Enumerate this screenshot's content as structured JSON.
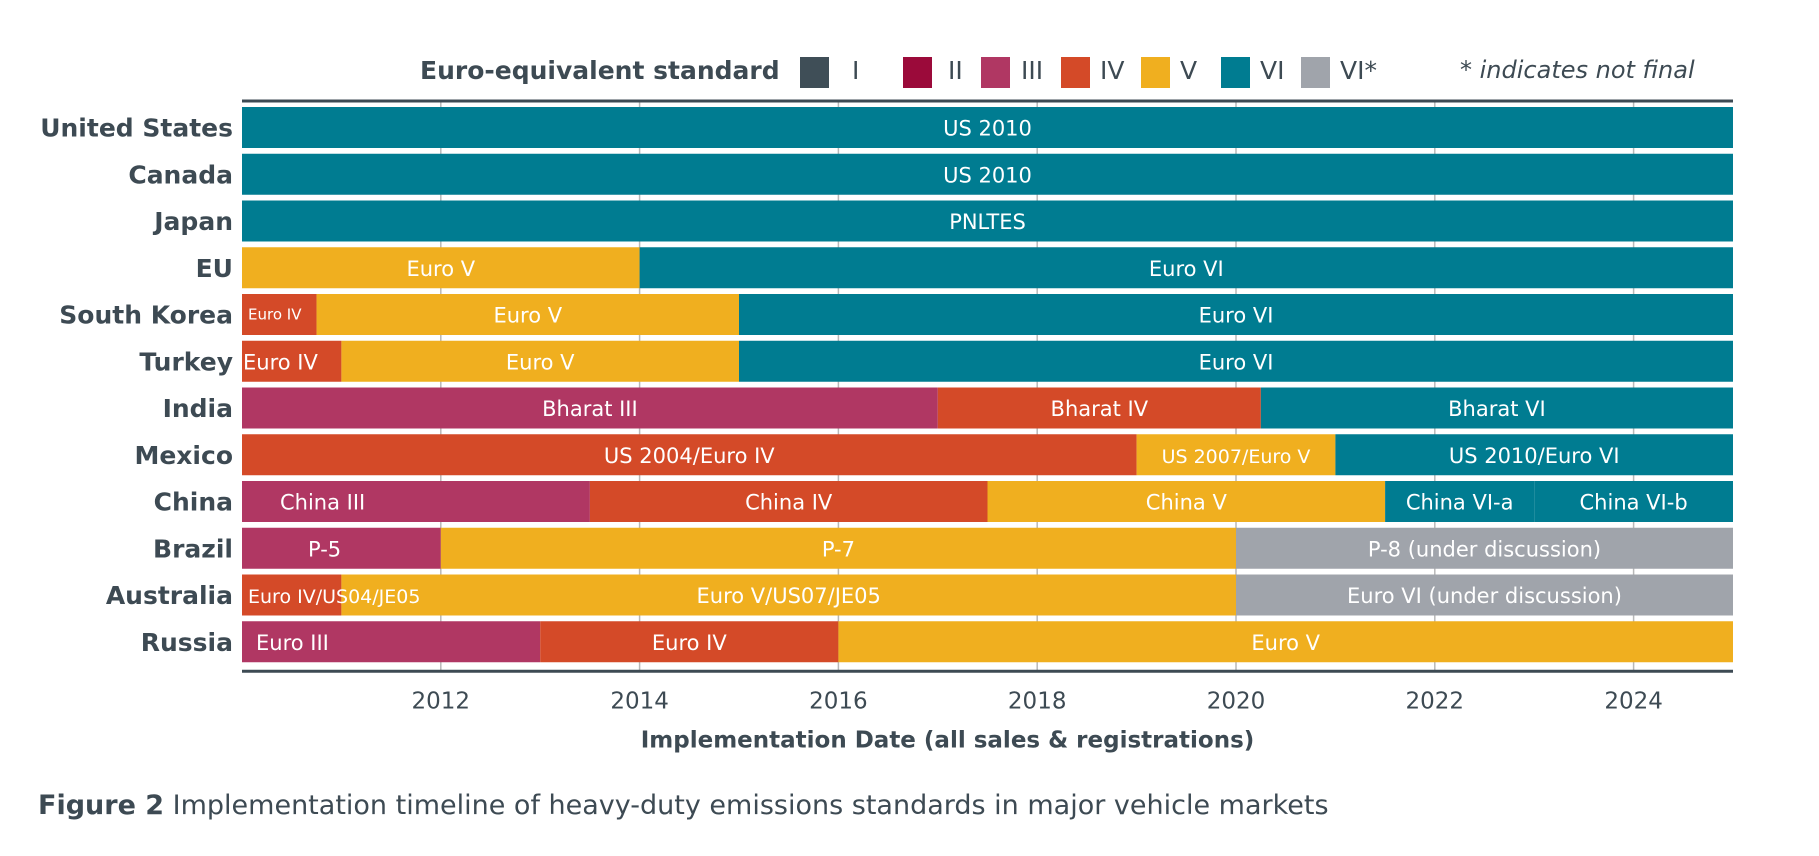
{
  "legend": {
    "title": "Euro-equivalent standard",
    "items": [
      {
        "key": "I",
        "label": "I",
        "color": "#3f4e57"
      },
      {
        "key": "II",
        "label": "II",
        "color": "#9b0a3a"
      },
      {
        "key": "III",
        "label": "III",
        "color": "#b03763"
      },
      {
        "key": "IV",
        "label": "IV",
        "color": "#d44a28"
      },
      {
        "key": "V",
        "label": "V",
        "color": "#f0af1f"
      },
      {
        "key": "VI",
        "label": "VI",
        "color": "#007c91"
      },
      {
        "key": "VI*",
        "label": "VI*",
        "color": "#a0a4ab"
      }
    ],
    "note": "* indicates not final"
  },
  "chart_data": {
    "type": "bar",
    "orientation": "horizontal-timeline",
    "title": "",
    "xlabel": "Implementation Date (all sales & registrations)",
    "ylabel": "",
    "xlim": [
      2010,
      2025
    ],
    "xticks": [
      2012,
      2014,
      2016,
      2018,
      2020,
      2022,
      2024
    ],
    "grid": true,
    "legend_position": "top",
    "categories": [
      "United States",
      "Canada",
      "Japan",
      "EU",
      "South Korea",
      "Turkey",
      "India",
      "Mexico",
      "China",
      "Brazil",
      "Australia",
      "Russia"
    ],
    "rows": [
      {
        "name": "United States",
        "segments": [
          {
            "label": "US 2010",
            "standard": "VI",
            "start": 2010,
            "end": 2025
          }
        ]
      },
      {
        "name": "Canada",
        "segments": [
          {
            "label": "US 2010",
            "standard": "VI",
            "start": 2010,
            "end": 2025
          }
        ]
      },
      {
        "name": "Japan",
        "segments": [
          {
            "label": "PNLTES",
            "standard": "VI",
            "start": 2010,
            "end": 2025
          }
        ]
      },
      {
        "name": "EU",
        "segments": [
          {
            "label": "Euro V",
            "standard": "V",
            "start": 2010,
            "end": 2014
          },
          {
            "label": "Euro VI",
            "standard": "VI",
            "start": 2014,
            "end": 2025
          }
        ]
      },
      {
        "name": "South Korea",
        "segments": [
          {
            "label": "Euro IV",
            "standard": "IV",
            "start": 2010,
            "end": 2010.75,
            "size": "small"
          },
          {
            "label": "Euro V",
            "standard": "V",
            "start": 2010.75,
            "end": 2015
          },
          {
            "label": "Euro VI",
            "standard": "VI",
            "start": 2015,
            "end": 2025
          }
        ]
      },
      {
        "name": "Turkey",
        "segments": [
          {
            "label": "Euro IV",
            "standard": "IV",
            "start": 2010,
            "end": 2011
          },
          {
            "label": "Euro V",
            "standard": "V",
            "start": 2011,
            "end": 2015
          },
          {
            "label": "Euro VI",
            "standard": "VI",
            "start": 2015,
            "end": 2025
          }
        ]
      },
      {
        "name": "India",
        "segments": [
          {
            "label": "Bharat III",
            "standard": "III",
            "start": 2010,
            "end": 2017
          },
          {
            "label": "Bharat IV",
            "standard": "IV",
            "start": 2017,
            "end": 2020.25
          },
          {
            "label": "Bharat VI",
            "standard": "VI",
            "start": 2020.25,
            "end": 2025
          }
        ]
      },
      {
        "name": "Mexico",
        "segments": [
          {
            "label": "US 2004/Euro IV",
            "standard": "IV",
            "start": 2010,
            "end": 2019
          },
          {
            "label": "US 2007/Euro V",
            "standard": "V",
            "start": 2019,
            "end": 2021,
            "size": "mid"
          },
          {
            "label": "US 2010/Euro VI",
            "standard": "VI",
            "start": 2021,
            "end": 2025
          }
        ]
      },
      {
        "name": "China",
        "segments": [
          {
            "label": "China III",
            "standard": "III",
            "start": 2010,
            "end": 2013.5
          },
          {
            "label": "China IV",
            "standard": "IV",
            "start": 2013.5,
            "end": 2017.5
          },
          {
            "label": "China V",
            "standard": "V",
            "start": 2017.5,
            "end": 2021.5
          },
          {
            "label": "China VI-a",
            "standard": "VI",
            "start": 2021.5,
            "end": 2023
          },
          {
            "label": "China VI-b",
            "standard": "VI",
            "start": 2023,
            "end": 2025
          }
        ]
      },
      {
        "name": "Brazil",
        "segments": [
          {
            "label": "P-5",
            "standard": "III",
            "start": 2010,
            "end": 2012
          },
          {
            "label": "P-7",
            "standard": "V",
            "start": 2012,
            "end": 2020
          },
          {
            "label": "P-8 (under discussion)",
            "standard": "VI*",
            "start": 2020,
            "end": 2025
          }
        ]
      },
      {
        "name": "Australia",
        "segments": [
          {
            "label": "Euro IV/US04/JE05",
            "standard": "IV",
            "start": 2010,
            "end": 2011,
            "size": "mid",
            "overflow": true
          },
          {
            "label": "Euro V/US07/JE05",
            "standard": "V",
            "start": 2011,
            "end": 2020
          },
          {
            "label": "Euro VI (under discussion)",
            "standard": "VI*",
            "start": 2020,
            "end": 2025
          }
        ]
      },
      {
        "name": "Russia",
        "segments": [
          {
            "label": "Euro III",
            "standard": "III",
            "start": 2010,
            "end": 2013
          },
          {
            "label": "Euro IV",
            "standard": "IV",
            "start": 2013,
            "end": 2016
          },
          {
            "label": "Euro V",
            "standard": "V",
            "start": 2016,
            "end": 2025
          }
        ]
      }
    ]
  },
  "caption": {
    "figure": "Figure 2",
    "text": " Implementation timeline of heavy-duty emissions standards in major vehicle markets"
  }
}
